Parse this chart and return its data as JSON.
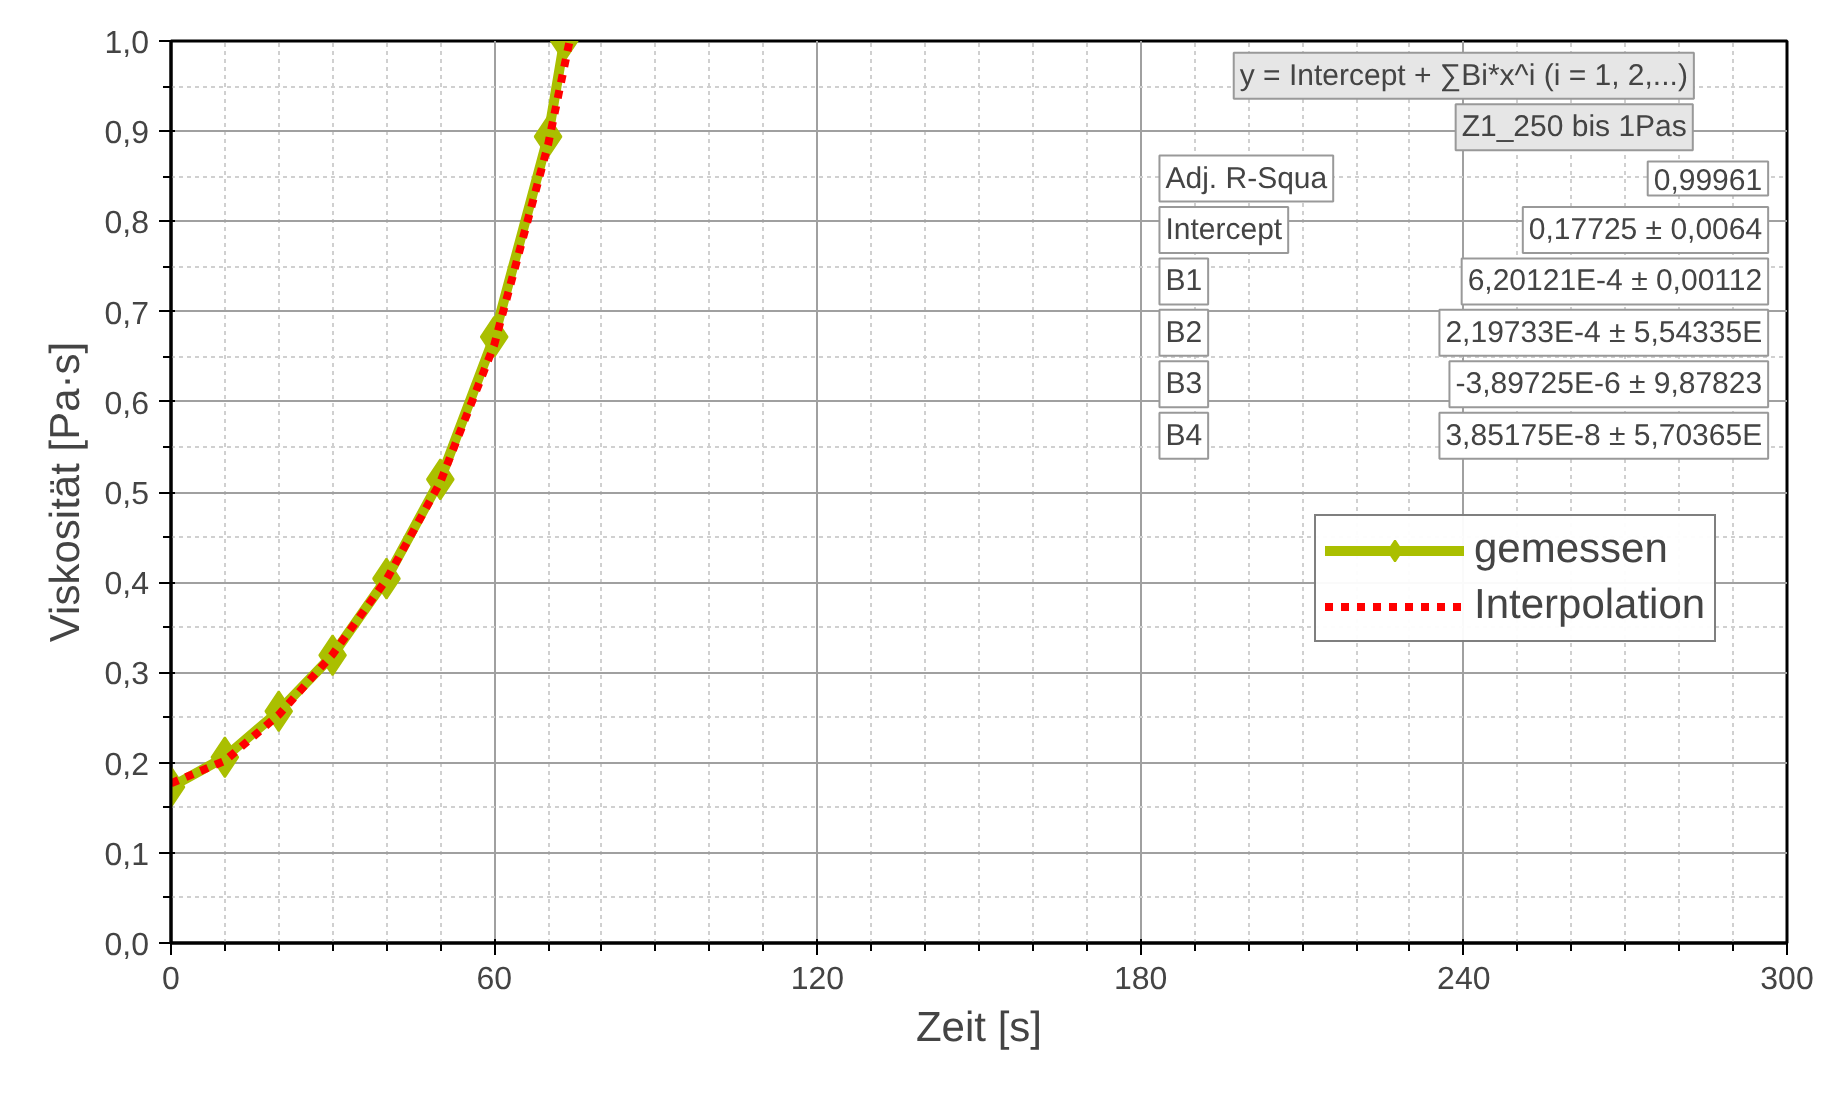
{
  "chart_data": {
    "type": "line",
    "xlabel": "Zeit [s]",
    "ylabel": "Viskosität [Pa·s]",
    "xlim": [
      0,
      300
    ],
    "ylim": [
      0,
      1
    ],
    "xticks": [
      0,
      60,
      120,
      180,
      240,
      300
    ],
    "yticks": [
      {
        "value": 0,
        "label": "0,0"
      },
      {
        "value": 0.1,
        "label": "0,1"
      },
      {
        "value": 0.2,
        "label": "0,2"
      },
      {
        "value": 0.3,
        "label": "0,3"
      },
      {
        "value": 0.4,
        "label": "0,4"
      },
      {
        "value": 0.5,
        "label": "0,5"
      },
      {
        "value": 0.6,
        "label": "0,6"
      },
      {
        "value": 0.7,
        "label": "0,7"
      },
      {
        "value": 0.8,
        "label": "0,8"
      },
      {
        "value": 0.9,
        "label": "0,9"
      },
      {
        "value": 1,
        "label": "1,0"
      }
    ],
    "grid": true,
    "legend": "right",
    "series": [
      {
        "name": "gemessen",
        "color": "#aabf00",
        "marker": "diamond",
        "line_style": "solid",
        "x": [
          0,
          10,
          20,
          30,
          40,
          50,
          60,
          70,
          73
        ],
        "values": [
          0.173,
          0.206,
          0.257,
          0.319,
          0.404,
          0.514,
          0.672,
          0.894,
          1.0
        ]
      },
      {
        "name": "Interpolation",
        "color": "#ff0000",
        "marker": "none",
        "line_style": "dotted",
        "x": [
          0,
          10,
          20,
          30,
          40,
          50,
          60,
          70,
          74
        ],
        "values": [
          0.177,
          0.202,
          0.253,
          0.32,
          0.403,
          0.511,
          0.663,
          0.885,
          1.0
        ]
      }
    ],
    "annotations": [
      "y = Intercept + ∑Bi*x^i (i = 1, 2,...)",
      "Z1_250 bis 1Pas",
      "Adj. R-Squa",
      "0,99961",
      "Intercept",
      "0,17725 ± 0,0064",
      "B1",
      "6,20121E-4 ± 0,00112",
      "B2",
      "2,19733E-4 ± 5,54335E",
      "B3",
      "-3,89725E-6 ± 9,87823",
      "B4",
      "3,85175E-8 ± 5,70365E"
    ]
  }
}
